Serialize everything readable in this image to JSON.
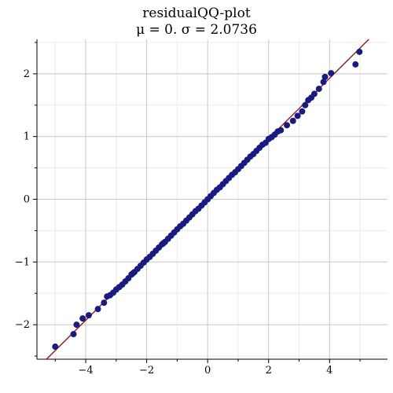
{
  "chart_data": {
    "type": "scatter",
    "title": "residualQQ-plot",
    "subtitle": "μ = 0.  σ = 2.0736",
    "xlabel": "",
    "ylabel": "",
    "xlim": [
      -5.6,
      5.9
    ],
    "ylim": [
      -2.55,
      2.55
    ],
    "x_ticks": [
      -4,
      -2,
      0,
      2,
      4
    ],
    "x_tick_labels": [
      "−4",
      "−2",
      "0",
      "2",
      "4"
    ],
    "y_ticks": [
      -2,
      -1,
      0,
      1,
      2
    ],
    "y_tick_labels": [
      "−2",
      "−1",
      "0",
      "1",
      "2"
    ],
    "grid": true,
    "colors": {
      "points": "#1a1a80",
      "reference_line": "#8b1a1a",
      "grid_major": "#c8c8c8",
      "grid_minor": "#ebebeb"
    },
    "reference_line": {
      "slope": 0.4823,
      "intercept": 0.0
    },
    "points": [
      [
        -5.0,
        -2.35
      ],
      [
        -4.4,
        -2.15
      ],
      [
        -4.3,
        -2.0
      ],
      [
        -4.1,
        -1.9
      ],
      [
        -3.9,
        -1.85
      ],
      [
        -3.6,
        -1.75
      ],
      [
        -3.4,
        -1.65
      ],
      [
        -3.3,
        -1.55
      ],
      [
        -3.2,
        -1.53
      ],
      [
        -3.1,
        -1.49
      ],
      [
        -3.0,
        -1.44
      ],
      [
        -2.9,
        -1.4
      ],
      [
        -2.8,
        -1.36
      ],
      [
        -2.7,
        -1.31
      ],
      [
        -2.6,
        -1.26
      ],
      [
        -2.5,
        -1.2
      ],
      [
        -2.45,
        -1.18
      ],
      [
        -2.4,
        -1.16
      ],
      [
        -2.3,
        -1.11
      ],
      [
        -2.2,
        -1.06
      ],
      [
        -2.1,
        -1.01
      ],
      [
        -2.0,
        -0.96
      ],
      [
        -1.9,
        -0.92
      ],
      [
        -1.8,
        -0.87
      ],
      [
        -1.7,
        -0.82
      ],
      [
        -1.6,
        -0.77
      ],
      [
        -1.5,
        -0.72
      ],
      [
        -1.45,
        -0.7
      ],
      [
        -1.4,
        -0.68
      ],
      [
        -1.3,
        -0.63
      ],
      [
        -1.2,
        -0.58
      ],
      [
        -1.1,
        -0.53
      ],
      [
        -1.0,
        -0.48
      ],
      [
        -0.9,
        -0.43
      ],
      [
        -0.8,
        -0.39
      ],
      [
        -0.7,
        -0.34
      ],
      [
        -0.6,
        -0.29
      ],
      [
        -0.5,
        -0.24
      ],
      [
        -0.4,
        -0.19
      ],
      [
        -0.3,
        -0.15
      ],
      [
        -0.2,
        -0.1
      ],
      [
        -0.1,
        -0.05
      ],
      [
        0.0,
        0.0
      ],
      [
        0.1,
        0.05
      ],
      [
        0.2,
        0.1
      ],
      [
        0.3,
        0.15
      ],
      [
        0.4,
        0.19
      ],
      [
        0.5,
        0.24
      ],
      [
        0.6,
        0.29
      ],
      [
        0.7,
        0.34
      ],
      [
        0.8,
        0.39
      ],
      [
        0.9,
        0.43
      ],
      [
        1.0,
        0.48
      ],
      [
        1.1,
        0.53
      ],
      [
        1.2,
        0.58
      ],
      [
        1.3,
        0.63
      ],
      [
        1.4,
        0.68
      ],
      [
        1.5,
        0.72
      ],
      [
        1.6,
        0.77
      ],
      [
        1.7,
        0.82
      ],
      [
        1.8,
        0.87
      ],
      [
        1.9,
        0.9
      ],
      [
        2.0,
        0.96
      ],
      [
        2.1,
        0.99
      ],
      [
        2.2,
        1.03
      ],
      [
        2.3,
        1.08
      ],
      [
        2.4,
        1.1
      ],
      [
        2.6,
        1.18
      ],
      [
        2.8,
        1.25
      ],
      [
        2.95,
        1.33
      ],
      [
        3.1,
        1.4
      ],
      [
        3.2,
        1.5
      ],
      [
        3.3,
        1.58
      ],
      [
        3.4,
        1.62
      ],
      [
        3.5,
        1.68
      ],
      [
        3.65,
        1.76
      ],
      [
        3.8,
        1.87
      ],
      [
        3.85,
        1.95
      ],
      [
        4.05,
        2.01
      ],
      [
        4.85,
        2.15
      ],
      [
        4.98,
        2.35
      ]
    ]
  }
}
